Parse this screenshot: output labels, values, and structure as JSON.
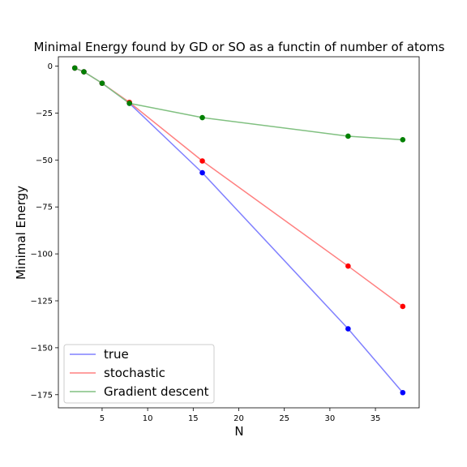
{
  "chart_data": {
    "type": "line",
    "title": "Minimal Energy found by GD or SO as a functin of number of atoms",
    "xlabel": "N",
    "ylabel": "Minimal Energy",
    "xlim": [
      0.2,
      39.8
    ],
    "ylim": [
      -182.0,
      5.0
    ],
    "xticks": [
      5,
      10,
      15,
      20,
      25,
      30,
      35
    ],
    "yticks": [
      0,
      -25,
      -50,
      -75,
      -100,
      -125,
      -150,
      -175
    ],
    "ytick_labels": [
      "0",
      "−25",
      "−50",
      "−75",
      "−100",
      "−125",
      "−150",
      "−175"
    ],
    "legend_position": "lower-left",
    "grid": false,
    "x": [
      2,
      3,
      5,
      8,
      16,
      32,
      38
    ],
    "series": [
      {
        "name": "true",
        "line_color": "#8080ff",
        "marker_color": "#0000ff",
        "values": [
          -1.0,
          -3.0,
          -9.1,
          -19.8,
          -56.8,
          -139.9,
          -173.9
        ]
      },
      {
        "name": "stochastic",
        "line_color": "#ff8080",
        "marker_color": "#ff0000",
        "values": [
          -1.0,
          -3.0,
          -9.1,
          -19.3,
          -50.5,
          -106.5,
          -128.0
        ]
      },
      {
        "name": "Gradient descent",
        "line_color": "#80c080",
        "marker_color": "#008000",
        "values": [
          -1.0,
          -3.0,
          -9.1,
          -19.8,
          -27.4,
          -37.3,
          -39.2
        ]
      }
    ]
  }
}
